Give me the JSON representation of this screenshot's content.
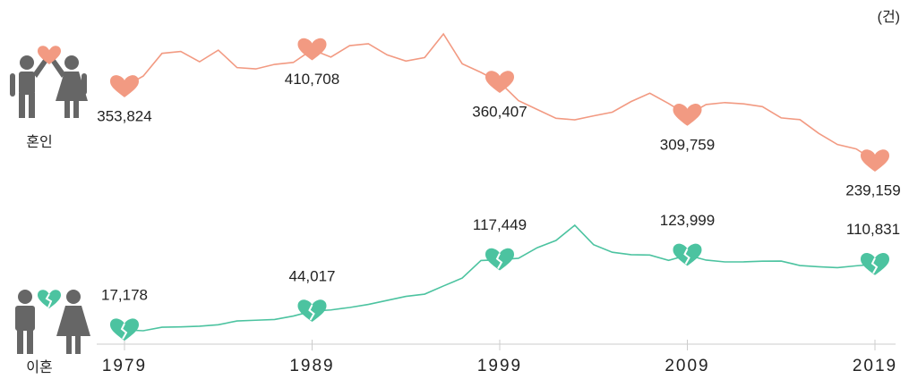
{
  "unit": "(건)",
  "chart_data": {
    "type": "line",
    "x": [
      1979,
      1980,
      1981,
      1982,
      1983,
      1984,
      1985,
      1986,
      1987,
      1988,
      1989,
      1990,
      1991,
      1992,
      1993,
      1994,
      1995,
      1996,
      1997,
      1998,
      1999,
      2000,
      2001,
      2002,
      2003,
      2004,
      2005,
      2006,
      2007,
      2008,
      2009,
      2010,
      2011,
      2012,
      2013,
      2014,
      2015,
      2016,
      2017,
      2018,
      2019
    ],
    "xticks": [
      1979,
      1989,
      1999,
      2009,
      2019
    ],
    "series": [
      {
        "name": "혼인",
        "color": "#f29a82",
        "values": [
          353824,
          370000,
          405000,
          408000,
          392000,
          410000,
          383000,
          381000,
          388000,
          391000,
          410708,
          399312,
          416872,
          419774,
          402593,
          393121,
          398484,
          434911,
          388960,
          375616,
          360407,
          332090,
          318407,
          304877,
          302503,
          308598,
          314304,
          330634,
          343559,
          327715,
          309759,
          326104,
          329087,
          327073,
          322807,
          305507,
          302828,
          281635,
          264455,
          257622,
          239159
        ],
        "value_labels": [
          "353,824",
          null,
          null,
          null,
          null,
          null,
          null,
          null,
          null,
          null,
          "410,708",
          null,
          null,
          null,
          null,
          null,
          null,
          null,
          null,
          null,
          "360,407",
          null,
          null,
          null,
          null,
          null,
          null,
          null,
          null,
          null,
          "309,759",
          null,
          null,
          null,
          null,
          null,
          null,
          null,
          null,
          null,
          "239,159"
        ]
      },
      {
        "name": "이혼",
        "color": "#4cc3a0",
        "values": [
          17178,
          16000,
          21000,
          21500,
          22500,
          24500,
          30000,
          31000,
          32000,
          37000,
          44017,
          45694,
          49205,
          53539,
          59313,
          65015,
          68279,
          79895,
          91159,
          116294,
          117449,
          119455,
          134608,
          144910,
          166617,
          138932,
          128035,
          124524,
          124072,
          116535,
          123999,
          116858,
          114284,
          114316,
          115292,
          115510,
          109153,
          107328,
          106032,
          108684,
          110831
        ],
        "value_labels": [
          "17,178",
          null,
          null,
          null,
          null,
          null,
          null,
          null,
          null,
          null,
          "44,017",
          null,
          null,
          null,
          null,
          null,
          null,
          null,
          null,
          null,
          "117,449",
          null,
          null,
          null,
          null,
          null,
          null,
          null,
          null,
          null,
          "123,999",
          null,
          null,
          null,
          null,
          null,
          null,
          null,
          null,
          null,
          "110,831"
        ]
      }
    ]
  }
}
